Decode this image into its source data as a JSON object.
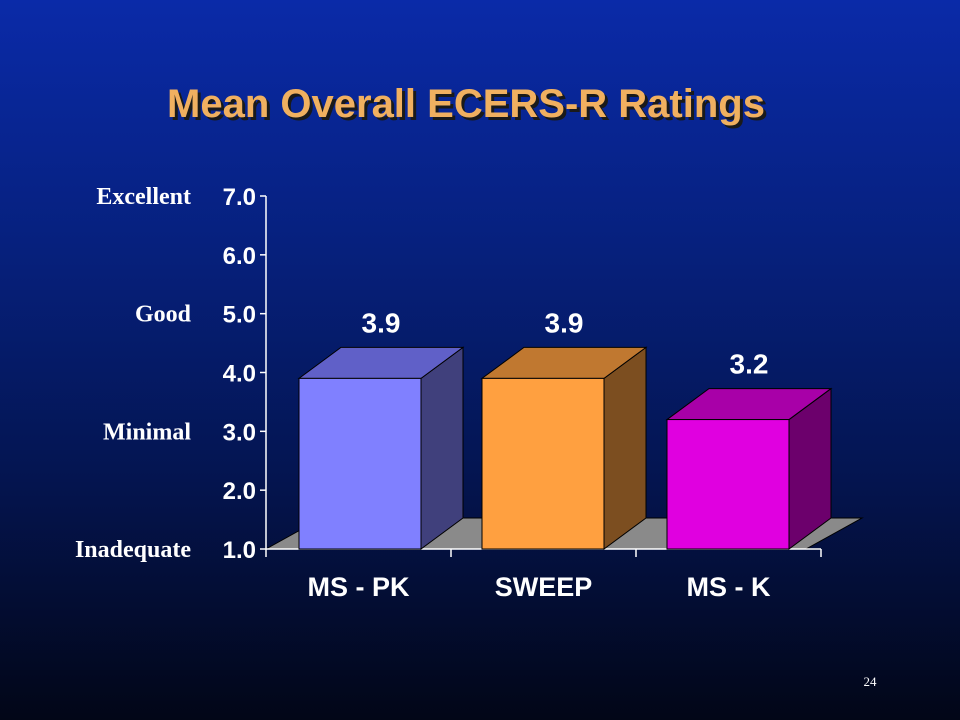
{
  "slide": {
    "title": "Mean Overall ECERS-R Ratings",
    "page_number": "24"
  },
  "colors": {
    "title": "#f0b060",
    "title_shadow": "#1a1a1a",
    "text": "#ffffff",
    "floor": "#8a8a8a"
  },
  "chart_data": {
    "type": "bar",
    "title": "Mean Overall ECERS-R Ratings",
    "categories": [
      "MS - PK",
      "SWEEP",
      "MS - K"
    ],
    "values": [
      3.9,
      3.9,
      3.2
    ],
    "value_labels": [
      "3.9",
      "3.9",
      "3.2"
    ],
    "ylim": [
      1.0,
      7.0
    ],
    "yticks": [
      1.0,
      2.0,
      3.0,
      4.0,
      5.0,
      6.0,
      7.0
    ],
    "ytick_labels": [
      "1.0",
      "2.0",
      "3.0",
      "4.0",
      "5.0",
      "6.0",
      "7.0"
    ],
    "rating_labels": [
      {
        "label": "Excellent",
        "value": 7.0
      },
      {
        "label": "Good",
        "value": 5.0
      },
      {
        "label": "Minimal",
        "value": 3.0
      },
      {
        "label": "Inadequate",
        "value": 1.0
      }
    ],
    "bar_colors": [
      {
        "front": "#8080ff",
        "top": "#6060c8",
        "side": "#40407c"
      },
      {
        "front": "#ffa040",
        "top": "#c07830",
        "side": "#7c4e20"
      },
      {
        "front": "#e000e0",
        "top": "#a800a8",
        "side": "#6c006c"
      }
    ],
    "grid": false,
    "legend": "none"
  }
}
